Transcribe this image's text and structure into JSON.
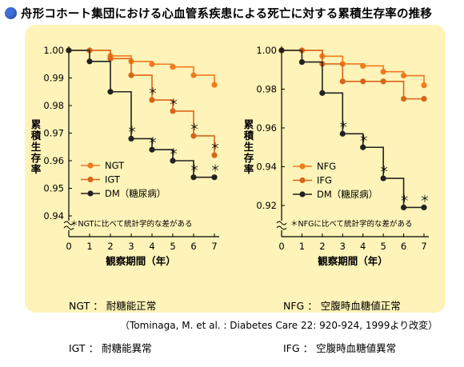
{
  "title": "舟形コホート集団における心血管系疾患による死亡に対する累積生存率の推移",
  "colors": {
    "panel": "#fef3b8",
    "orange": "#f07a1e",
    "dark_orange": "#d8661a",
    "black": "#222222",
    "bullet": "#3f6fd8"
  },
  "chart_data": [
    {
      "type": "line",
      "ylabel": "累積生存率",
      "xlabel": "観察期間（年）",
      "x": [
        0,
        1,
        2,
        3,
        4,
        5,
        6,
        7
      ],
      "ylim": [
        0.94,
        1.0
      ],
      "y_ticks": [
        "1.00",
        "0.99",
        "0.98",
        "0.97",
        "0.96",
        "0.95",
        "0.94"
      ],
      "x_ticks": [
        "0",
        "1",
        "2",
        "3",
        "4",
        "5",
        "6",
        "7"
      ],
      "series": [
        {
          "name": "NGT",
          "marker": "filled",
          "values": [
            1.0,
            1.0,
            0.998,
            0.996,
            0.995,
            0.994,
            0.991,
            0.9875
          ]
        },
        {
          "name": "IGT",
          "marker": "filled",
          "values": [
            1.0,
            1.0,
            0.997,
            0.991,
            0.982,
            0.978,
            0.969,
            0.962
          ]
        },
        {
          "name": "DM（糖尿病）",
          "marker": "filled",
          "values": [
            1.0,
            0.996,
            0.985,
            0.968,
            0.964,
            0.96,
            0.954,
            0.954
          ]
        }
      ],
      "significance_marks": [
        {
          "series": "IGT",
          "x": [
            4,
            5,
            6,
            7
          ]
        },
        {
          "series": "DM（糖尿病）",
          "x": [
            3,
            4,
            5,
            6,
            7
          ]
        }
      ],
      "note": "＊NGTに比べて統計学的な差がある",
      "definitions": [
        {
          "abbr": "NGT",
          "sep": "：",
          "desc": "耐糖能正常"
        },
        {
          "abbr": "IGT",
          "sep": "：",
          "desc": "耐糖能異常"
        }
      ]
    },
    {
      "type": "line",
      "ylabel": "累積生存率",
      "xlabel": "観察期間（年）",
      "x": [
        0,
        1,
        2,
        3,
        4,
        5,
        6,
        7
      ],
      "ylim": [
        0.92,
        1.0
      ],
      "y_ticks": [
        "1.00",
        "0.98",
        "0.96",
        "0.94",
        "0.92"
      ],
      "x_ticks": [
        "0",
        "1",
        "2",
        "3",
        "4",
        "5",
        "6",
        "7"
      ],
      "series": [
        {
          "name": "NFG",
          "marker": "filled",
          "values": [
            1.0,
            1.0,
            0.997,
            0.993,
            0.992,
            0.989,
            0.987,
            0.982
          ]
        },
        {
          "name": "IFG",
          "marker": "filled",
          "values": [
            1.0,
            1.0,
            0.993,
            0.984,
            0.984,
            0.984,
            0.975,
            0.975
          ]
        },
        {
          "name": "DM（糖尿病）",
          "marker": "filled",
          "values": [
            1.0,
            0.994,
            0.978,
            0.957,
            0.95,
            0.934,
            0.919,
            0.919
          ]
        }
      ],
      "significance_marks": [
        {
          "series": "DM（糖尿病）",
          "x": [
            3,
            4,
            5,
            6,
            7
          ]
        }
      ],
      "note": "＊NFGに比べて統計学的な差がある",
      "definitions": [
        {
          "abbr": "NFG",
          "sep": "：",
          "desc": "空腹時血糖値正常"
        },
        {
          "abbr": "IFG",
          "sep": "：",
          "desc": "空腹時血糖値異常"
        }
      ]
    }
  ],
  "citation": "（Tominaga, M. et al. : Diabetes Care 22: 920-924, 1999より改変）"
}
